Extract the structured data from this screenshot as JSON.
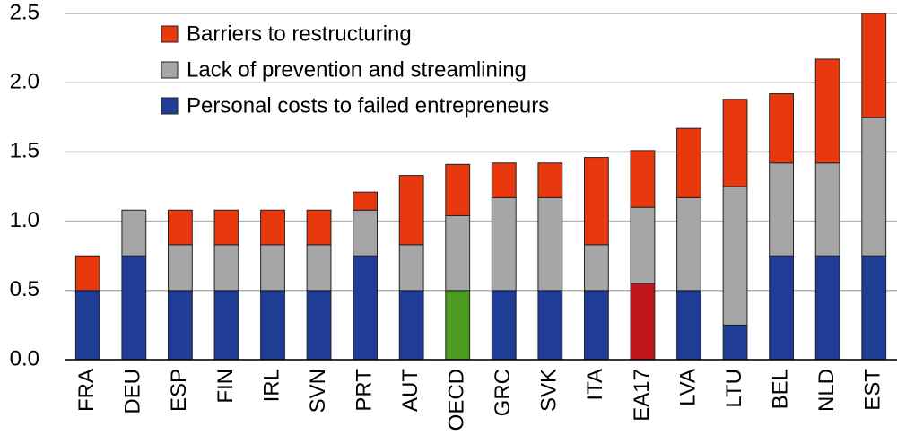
{
  "chart_data": {
    "type": "stacked_bar",
    "categories": [
      "FRA",
      "DEU",
      "ESP",
      "FIN",
      "IRL",
      "SVN",
      "PRT",
      "AUT",
      "OECD",
      "GRC",
      "SVK",
      "ITA",
      "EA17",
      "LVA",
      "LTU",
      "BEL",
      "NLD",
      "EST"
    ],
    "series": [
      {
        "name": "Personal costs to failed entrepreneurs",
        "color": "#1f3c96",
        "values": [
          0.5,
          0.75,
          0.5,
          0.5,
          0.5,
          0.5,
          0.75,
          0.5,
          0.5,
          0.5,
          0.5,
          0.5,
          0.55,
          0.5,
          0.25,
          0.75,
          0.75,
          0.75
        ],
        "colors": [
          "#1f3c96",
          "#1f3c96",
          "#1f3c96",
          "#1f3c96",
          "#1f3c96",
          "#1f3c96",
          "#1f3c96",
          "#1f3c96",
          "#4c9a1e",
          "#1f3c96",
          "#1f3c96",
          "#1f3c96",
          "#c0161c",
          "#1f3c96",
          "#1f3c96",
          "#1f3c96",
          "#1f3c96",
          "#1f3c96"
        ]
      },
      {
        "name": "Lack of prevention and streamlining",
        "color": "#a6a6a6",
        "values": [
          0,
          0.33,
          0.33,
          0.33,
          0.33,
          0.33,
          0.33,
          0.33,
          0.54,
          0.67,
          0.67,
          0.33,
          0.55,
          0.67,
          1.0,
          0.67,
          0.67,
          1.0
        ]
      },
      {
        "name": "Barriers to restructuring",
        "color": "#e8380d",
        "values": [
          0.25,
          0,
          0.25,
          0.25,
          0.25,
          0.25,
          0.13,
          0.5,
          0.37,
          0.25,
          0.25,
          0.63,
          0.41,
          0.5,
          0.63,
          0.5,
          0.75,
          0.75
        ]
      }
    ],
    "ylim": [
      0,
      2.5
    ],
    "yticks": [
      {
        "value": 0,
        "label": "0.0"
      },
      {
        "value": 0.5,
        "label": "0.5"
      },
      {
        "value": 1,
        "label": "1.0"
      },
      {
        "value": 1.5,
        "label": "1.5"
      },
      {
        "value": 2,
        "label": "2.0"
      },
      {
        "value": 2.5,
        "label": "2.5"
      }
    ],
    "grid": true,
    "legend": "top-left"
  }
}
